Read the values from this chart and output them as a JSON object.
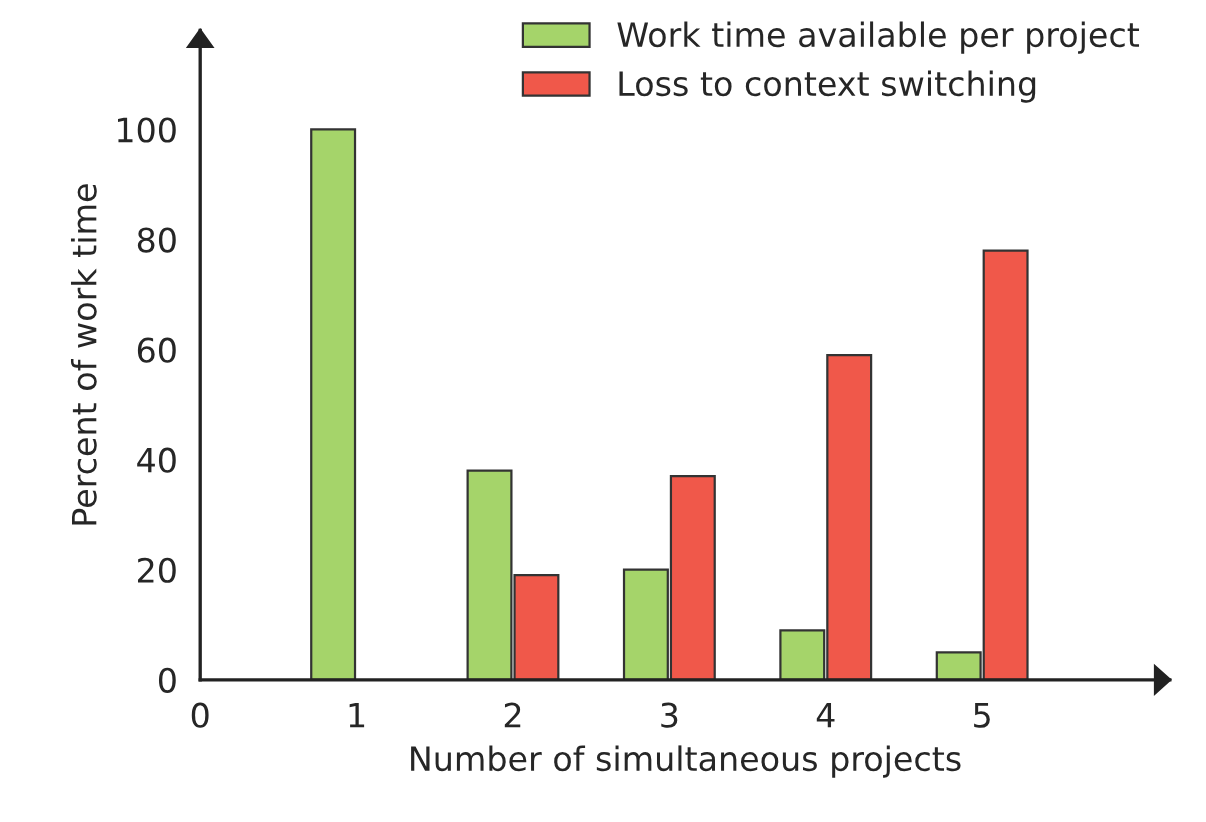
{
  "chart_data": {
    "type": "bar",
    "xlabel": "Number of simultaneous projects",
    "ylabel": "Percent of work time",
    "x": [
      1,
      2,
      3,
      4,
      5
    ],
    "series": [
      {
        "name": "Work time available per project",
        "color": "#a5d46a",
        "values": [
          100,
          38,
          20,
          9,
          5
        ]
      },
      {
        "name": "Loss to context switching",
        "color": "#f0584a",
        "values": [
          null,
          19,
          37,
          59,
          78
        ]
      }
    ],
    "xlim": [
      0,
      6.2
    ],
    "xticks": [
      0,
      1,
      2,
      3,
      4,
      5
    ],
    "ylim": [
      0,
      118
    ],
    "yticks": [
      0,
      20,
      40,
      60,
      80,
      100
    ],
    "grid": false,
    "legend": "top right"
  }
}
